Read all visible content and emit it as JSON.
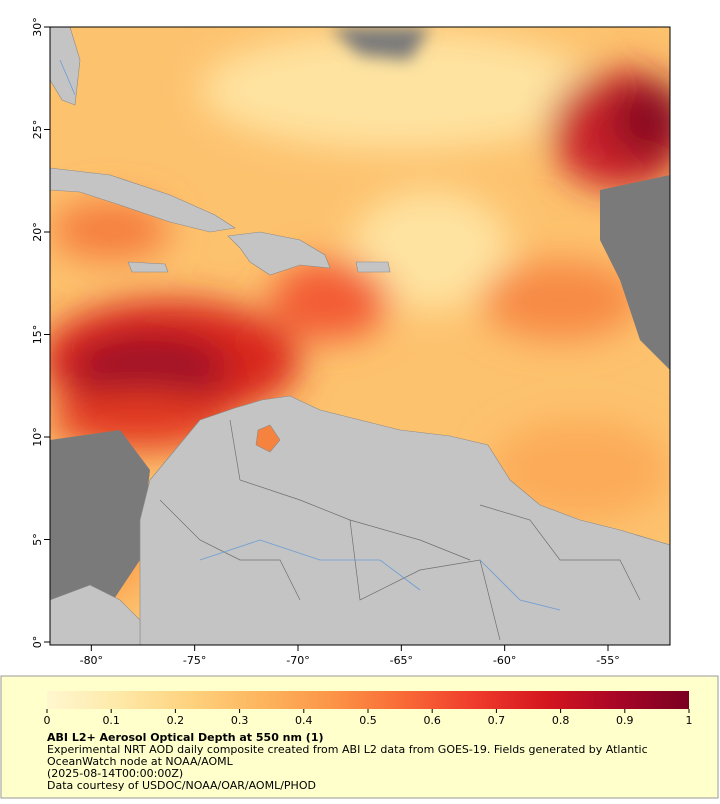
{
  "map": {
    "lon_lim": [
      -82,
      -52
    ],
    "lat_lim": [
      0,
      30
    ],
    "lon_ticks": [
      {
        "value": -80,
        "label": "-80°"
      },
      {
        "value": -75,
        "label": "-75°"
      },
      {
        "value": -70,
        "label": "-70°"
      },
      {
        "value": -65,
        "label": "-65°"
      },
      {
        "value": -60,
        "label": "-60°"
      },
      {
        "value": -55,
        "label": "-55°"
      }
    ],
    "lat_ticks": [
      {
        "value": 0,
        "label": "0°"
      },
      {
        "value": 5,
        "label": "5°"
      },
      {
        "value": 10,
        "label": "10°"
      },
      {
        "value": 15,
        "label": "15°"
      },
      {
        "value": 20,
        "label": "20°"
      },
      {
        "value": 25,
        "label": "25°"
      },
      {
        "value": 30,
        "label": "30°"
      }
    ]
  },
  "colorbar": {
    "lim": [
      0,
      1
    ],
    "ticks": [
      0,
      0.1,
      0.2,
      0.3,
      0.4,
      0.5,
      0.6,
      0.7,
      0.8,
      0.9,
      1
    ],
    "colormap": [
      "#fff7d0",
      "#fee9a8",
      "#fed27e",
      "#fdb55e",
      "#fc9447",
      "#f96a36",
      "#ef3b2c",
      "#d4161f",
      "#a80526",
      "#7a0021"
    ]
  },
  "caption": {
    "title": "ABI L2+ Aerosol Optical Depth at 550 nm (1)",
    "lines": [
      "Experimental NRT AOD daily composite created from ABI L2 data from GOES-19. Fields generated by Atlantic",
      "OceanWatch node at NOAA/AOML",
      "(2025-08-14T00:00:00Z)",
      "Data courtesy of USDOC/NOAA/OAR/AOML/PHOD"
    ]
  }
}
